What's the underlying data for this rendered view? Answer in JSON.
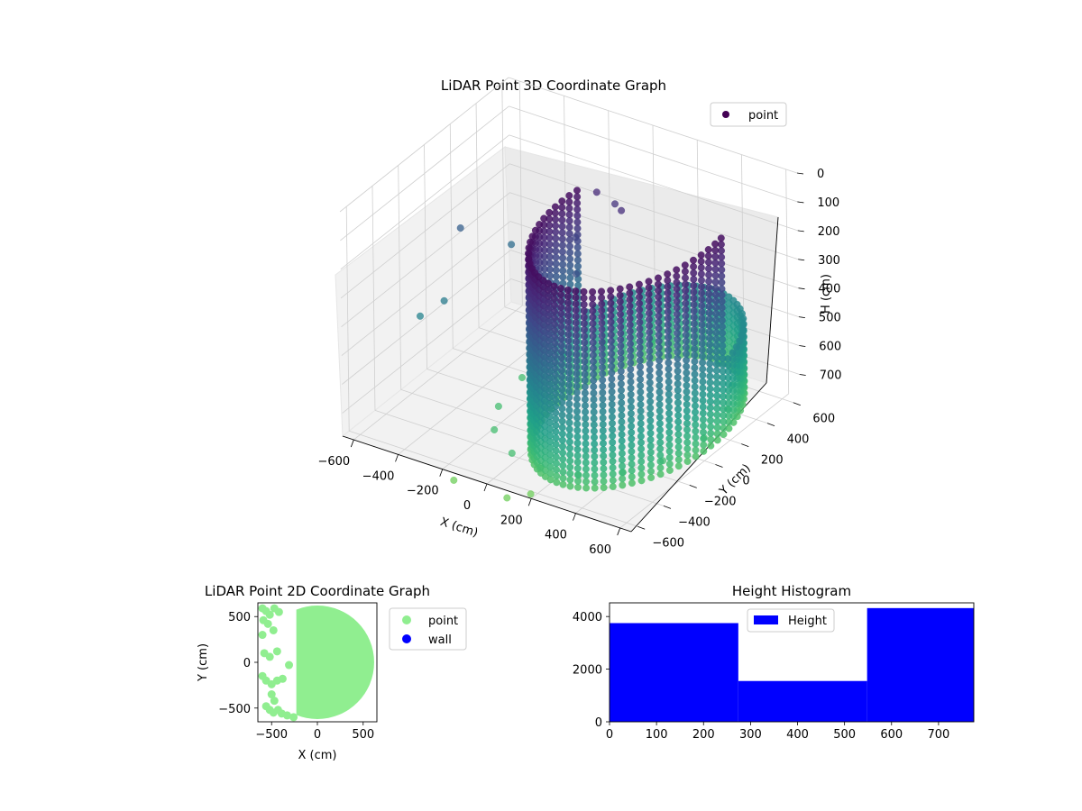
{
  "chart_data": [
    {
      "type": "scatter3d",
      "title": "LiDAR Point 3D Coordinate Graph",
      "xlabel": "X (cm)",
      "ylabel": "Y (cm)",
      "zlabel": "H (cm)",
      "xlim": [
        -650,
        650
      ],
      "ylim": [
        -650,
        650
      ],
      "zlim": [
        0,
        780
      ],
      "z_inverted": true,
      "x_ticks": [
        "−600",
        "−400",
        "−200",
        "0",
        "200",
        "400",
        "600"
      ],
      "y_ticks": [
        "−600",
        "−400",
        "−200",
        "0",
        "200",
        "400",
        "600"
      ],
      "z_ticks": [
        "0",
        "100",
        "200",
        "300",
        "400",
        "500",
        "600",
        "700"
      ],
      "legend": [
        "point"
      ],
      "legend_position": "top-right",
      "colormap": "viridis",
      "series": [
        {
          "name": "point",
          "description_points": {
            "ring_radius": 600,
            "ring_center": [
              300,
              0
            ],
            "height_range": [
              30,
              720
            ]
          },
          "x": [
            200,
            350,
            480,
            560,
            600,
            560,
            480,
            350,
            200,
            50,
            -100,
            -180,
            -220,
            -180,
            -100,
            50,
            -50,
            20,
            90,
            -500,
            -450,
            -550,
            -380,
            -120,
            180,
            120,
            -30,
            60
          ],
          "y": [
            -580,
            -540,
            -420,
            -250,
            0,
            250,
            420,
            540,
            580,
            540,
            420,
            250,
            0,
            -250,
            -420,
            -540,
            300,
            320,
            250,
            -300,
            -200,
            100,
            200,
            -700,
            -620,
            -700,
            100,
            -50
          ],
          "h": [
            700,
            700,
            700,
            700,
            700,
            700,
            700,
            700,
            700,
            700,
            700,
            700,
            700,
            700,
            700,
            700,
            120,
            150,
            130,
            450,
            420,
            300,
            350,
            780,
            780,
            780,
            200,
            250
          ]
        }
      ],
      "grid": true
    },
    {
      "type": "scatter",
      "title": "LiDAR Point 2D Coordinate Graph",
      "xlabel": "X (cm)",
      "ylabel": "Y (cm)",
      "xlim": [
        -650,
        650
      ],
      "ylim": [
        -650,
        650
      ],
      "x_ticks": [
        "−500",
        "0",
        "500"
      ],
      "y_ticks": [
        "−500",
        "0",
        "500"
      ],
      "legend": [
        "point",
        "wall"
      ],
      "legend_position": "right outside",
      "series": [
        {
          "name": "point",
          "color": "#90ee90",
          "disk": {
            "center": [
              0,
              0
            ],
            "radius": 620,
            "x_min": -230
          },
          "x": [
            -600,
            -560,
            -520,
            -470,
            -420,
            -590,
            -540,
            -480,
            -580,
            -520,
            -440,
            -600,
            -560,
            -500,
            -440,
            -380,
            -470,
            -310,
            -560,
            -520,
            -480,
            -430,
            -390,
            -330,
            -260,
            -500,
            -600
          ],
          "y": [
            590,
            560,
            520,
            590,
            550,
            460,
            420,
            350,
            100,
            60,
            120,
            -150,
            -200,
            -240,
            -200,
            -180,
            -420,
            -30,
            -480,
            -520,
            -550,
            -520,
            -560,
            -580,
            -600,
            -350,
            300
          ]
        },
        {
          "name": "wall",
          "color": "#0000ff",
          "x": [],
          "y": []
        }
      ],
      "grid": false
    },
    {
      "type": "bar",
      "title": "Height Histogram",
      "xlabel": "",
      "ylabel": "",
      "xlim": [
        0,
        775
      ],
      "ylim": [
        0,
        4520
      ],
      "x_ticks": [
        "0",
        "100",
        "200",
        "300",
        "400",
        "500",
        "600",
        "700"
      ],
      "y_ticks": [
        "0",
        "2000",
        "4000"
      ],
      "legend": [
        "Height"
      ],
      "legend_position": "upper center",
      "series": [
        {
          "name": "Height",
          "color": "#0000ff",
          "bins": [
            [
              0,
              274
            ],
            [
              274,
              548
            ],
            [
              548,
              775
            ]
          ],
          "values": [
            3750,
            1550,
            4320
          ]
        }
      ],
      "grid": false
    }
  ]
}
